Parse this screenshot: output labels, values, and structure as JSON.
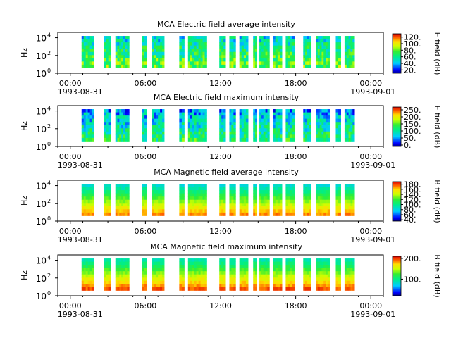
{
  "chart_data": [
    {
      "type": "heatmap",
      "title": "MCA  Electric field average intensity",
      "ylabel": "Hz",
      "y_ticks": [
        "10",
        "10",
        "10"
      ],
      "y_tick_exponents": [
        "0",
        "2",
        "4"
      ],
      "ylim_log10": [
        0,
        4.6
      ],
      "x_ticks": [
        "00:00",
        "06:00",
        "12:00",
        "18:00",
        "00:00"
      ],
      "x_date_start": "1993-08-31",
      "x_date_end": "1993-09-01",
      "colorbar": {
        "label": "E field (dB)",
        "ticks": [
          "20.",
          "40.",
          "60.",
          "80.",
          "100.",
          "120."
        ],
        "range": [
          10,
          130
        ]
      },
      "level": 0.45
    },
    {
      "type": "heatmap",
      "title": "MCA  Electric field maximum intensity",
      "ylabel": "Hz",
      "y_ticks": [
        "10",
        "10",
        "10"
      ],
      "y_tick_exponents": [
        "0",
        "2",
        "4"
      ],
      "ylim_log10": [
        0,
        4.6
      ],
      "x_ticks": [
        "00:00",
        "06:00",
        "12:00",
        "18:00",
        "00:00"
      ],
      "x_date_start": "1993-08-31",
      "x_date_end": "1993-09-01",
      "colorbar": {
        "label": "E field (dB)",
        "ticks": [
          "0.",
          "50.",
          "100.",
          "150.",
          "200.",
          "250."
        ],
        "range": [
          -10,
          270
        ]
      },
      "level": 0.35
    },
    {
      "type": "heatmap",
      "title": "MCA  Magnetic field average intensity",
      "ylabel": "Hz",
      "y_ticks": [
        "10",
        "10",
        "10"
      ],
      "y_tick_exponents": [
        "0",
        "2",
        "4"
      ],
      "ylim_log10": [
        0,
        4.6
      ],
      "x_ticks": [
        "00:00",
        "06:00",
        "12:00",
        "18:00",
        "00:00"
      ],
      "x_date_start": "1993-08-31",
      "x_date_end": "1993-09-01",
      "colorbar": {
        "label": "B field (dB)",
        "ticks": [
          "40.",
          "60.",
          "80.",
          "100.",
          "120.",
          "140.",
          "160.",
          "180."
        ],
        "range": [
          35,
          190
        ]
      },
      "level": 0.5
    },
    {
      "type": "heatmap",
      "title": "MCA  Magnetic field maximum intensity",
      "ylabel": "Hz",
      "y_ticks": [
        "10",
        "10",
        "10"
      ],
      "y_tick_exponents": [
        "0",
        "2",
        "4"
      ],
      "ylim_log10": [
        0,
        4.6
      ],
      "x_ticks": [
        "00:00",
        "06:00",
        "12:00",
        "18:00",
        "00:00"
      ],
      "x_date_start": "1993-08-31",
      "x_date_end": "1993-09-01",
      "colorbar": {
        "label": "B field (dB)",
        "ticks": [
          "100.",
          "200."
        ],
        "range": [
          20,
          210
        ]
      },
      "level": 0.55
    }
  ],
  "data_coverage_hours": [
    [
      0.9,
      1.9
    ],
    [
      2.7,
      3.2
    ],
    [
      3.6,
      4.7
    ],
    [
      5.7,
      6.1
    ],
    [
      6.5,
      7.5
    ],
    [
      8.7,
      9.1
    ],
    [
      9.4,
      10.9
    ],
    [
      11.9,
      12.4
    ],
    [
      12.7,
      13.2
    ],
    [
      13.5,
      14.2
    ],
    [
      14.6,
      14.9
    ],
    [
      15.1,
      15.9
    ],
    [
      16.2,
      16.9
    ],
    [
      17.2,
      17.9
    ],
    [
      18.6,
      19.2
    ],
    [
      19.6,
      20.7
    ],
    [
      21.2,
      21.6
    ],
    [
      21.9,
      22.7
    ]
  ],
  "colors": {
    "map_low": "#0000cc",
    "map_mid": "#00ee66",
    "map_high": "#ff2200"
  }
}
